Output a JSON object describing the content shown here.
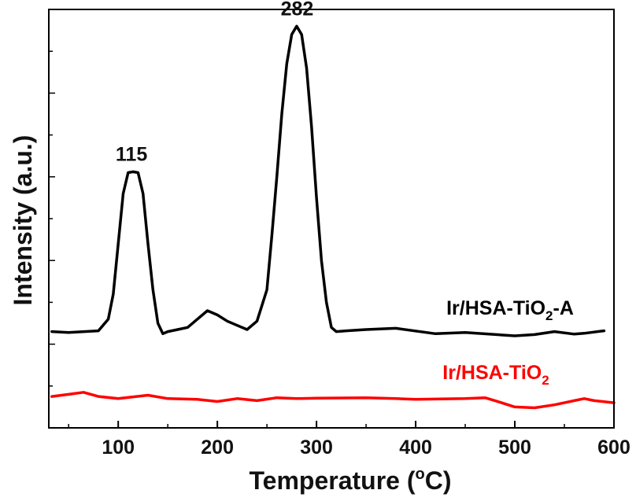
{
  "chart_data": {
    "type": "line",
    "title": "",
    "xlabel": "Temperature (°C)",
    "xlabel_parts": {
      "main": "Temperature (",
      "sup": "o",
      "end": "C)"
    },
    "ylabel": "Intensity (a.u.)",
    "xlim": [
      30,
      600
    ],
    "ylim": [
      0,
      1
    ],
    "x_ticks": [
      100,
      200,
      300,
      400,
      500,
      600
    ],
    "x_tick_labels": [
      "100",
      "200",
      "300",
      "400",
      "500",
      "600"
    ],
    "x_minor_step": 50,
    "y_tick_labels": [],
    "grid": false,
    "series": [
      {
        "name": "Ir/HSA-TiO2-A",
        "label_parts": {
          "main": "Ir/HSA-TiO",
          "sub": "2",
          "end": "-A"
        },
        "color": "#000000",
        "x": [
          33,
          50,
          80,
          90,
          95,
          100,
          105,
          110,
          115,
          120,
          125,
          130,
          135,
          140,
          145,
          150,
          160,
          170,
          180,
          190,
          200,
          210,
          220,
          230,
          240,
          250,
          255,
          260,
          265,
          270,
          275,
          280,
          285,
          290,
          295,
          300,
          305,
          310,
          315,
          320,
          330,
          350,
          380,
          420,
          450,
          500,
          520,
          540,
          560,
          570,
          590
        ],
        "y": [
          0.23,
          0.228,
          0.232,
          0.26,
          0.32,
          0.44,
          0.56,
          0.61,
          0.612,
          0.61,
          0.56,
          0.44,
          0.33,
          0.25,
          0.225,
          0.23,
          0.235,
          0.24,
          0.26,
          0.28,
          0.27,
          0.255,
          0.245,
          0.235,
          0.255,
          0.33,
          0.46,
          0.6,
          0.75,
          0.87,
          0.94,
          0.96,
          0.94,
          0.86,
          0.72,
          0.55,
          0.4,
          0.3,
          0.24,
          0.23,
          0.232,
          0.235,
          0.238,
          0.225,
          0.228,
          0.22,
          0.223,
          0.23,
          0.224,
          0.226,
          0.232
        ]
      },
      {
        "name": "Ir/HSA-TiO2",
        "label_parts": {
          "main": "Ir/HSA-TiO",
          "sub": "2",
          "end": ""
        },
        "color": "#ff0000",
        "x": [
          33,
          50,
          65,
          80,
          100,
          130,
          150,
          180,
          200,
          220,
          240,
          260,
          280,
          300,
          350,
          380,
          400,
          450,
          470,
          480,
          500,
          520,
          540,
          560,
          570,
          580,
          600
        ],
        "y": [
          0.075,
          0.08,
          0.085,
          0.075,
          0.07,
          0.078,
          0.07,
          0.068,
          0.063,
          0.07,
          0.065,
          0.072,
          0.07,
          0.071,
          0.072,
          0.07,
          0.068,
          0.07,
          0.072,
          0.065,
          0.05,
          0.048,
          0.055,
          0.065,
          0.07,
          0.065,
          0.06
        ]
      }
    ],
    "annotations": [
      {
        "text": "115",
        "x": 115,
        "y": 0.612
      },
      {
        "text": "282",
        "x": 282,
        "y": 0.96
      }
    ]
  }
}
